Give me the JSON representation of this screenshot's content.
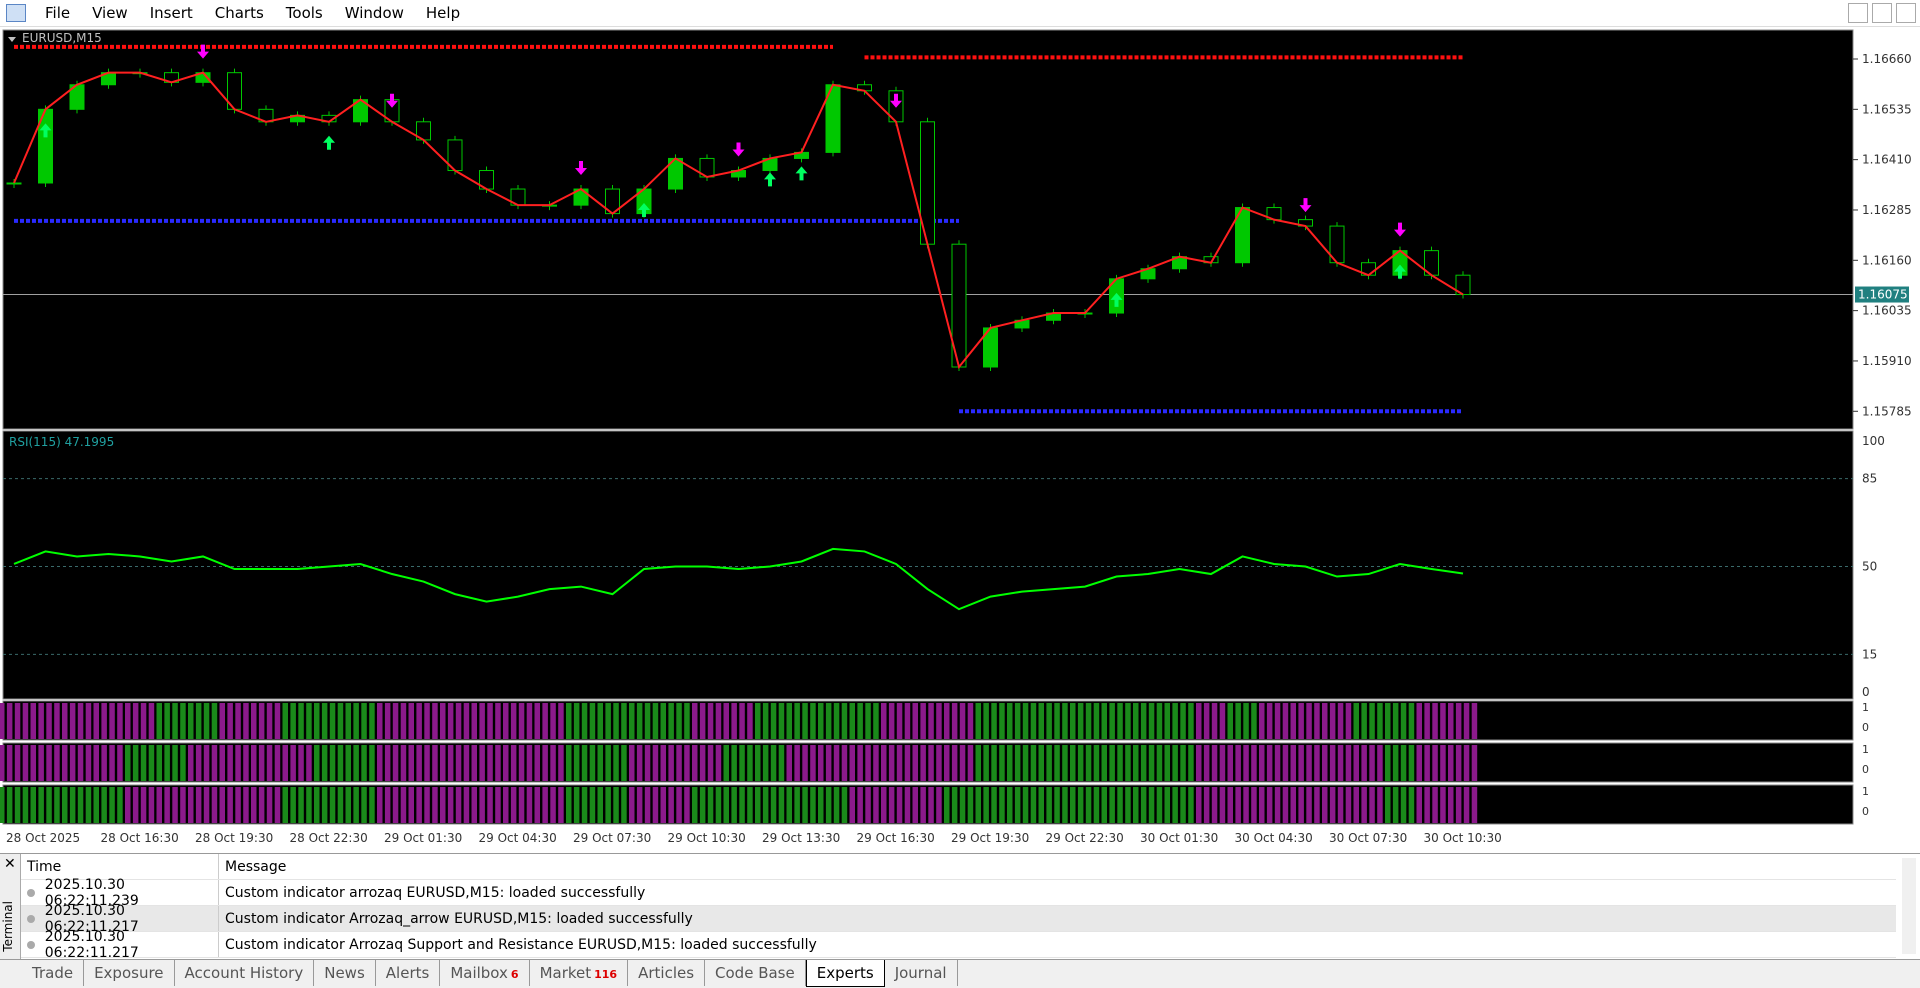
{
  "menu": [
    "File",
    "View",
    "Insert",
    "Charts",
    "Tools",
    "Window",
    "Help"
  ],
  "chart_data": {
    "type": "candlestick",
    "symbol": "EURUSD,M15",
    "price": {
      "values": [
        1.16352,
        1.16535,
        1.16596,
        1.16626,
        1.16626,
        1.16602,
        1.16626,
        1.16535,
        1.16504,
        1.1652,
        1.16504,
        1.16559,
        1.16504,
        1.16459,
        1.16383,
        1.16337,
        1.16297,
        1.16297,
        1.16337,
        1.16276,
        1.16337,
        1.16413,
        1.16367,
        1.16383,
        1.16413,
        1.16428,
        1.16596,
        1.16581,
        1.16504,
        1.162,
        1.15895,
        1.15992,
        1.16011,
        1.16029,
        1.16029,
        1.16114,
        1.16139,
        1.16169,
        1.16154,
        1.16291,
        1.16261,
        1.16245,
        1.16154,
        1.16123,
        1.16184,
        1.16123,
        1.16075
      ],
      "up_color": "#00c800",
      "line_color": "#ff2020",
      "ylim": [
        1.15741,
        1.16732
      ],
      "yticks": [
        {
          "value": 1.1666,
          "label": "1.16660"
        },
        1.16535,
        {
          "value": 1.1641,
          "label": "1.16410"
        },
        1.16285,
        {
          "value": 1.1616,
          "label": "1.16160"
        },
        1.16035,
        {
          "value": 1.1591,
          "label": "1.15910"
        },
        1.15785
      ],
      "current_price": 1.16075,
      "resistance": [
        {
          "price": 1.1669,
          "from": 0,
          "to": 26
        },
        {
          "price": 1.16664,
          "from": 27,
          "to": 46
        }
      ],
      "support": [
        {
          "price": 1.16258,
          "from": 0,
          "to": 30
        },
        {
          "price": 1.15785,
          "from": 30,
          "to": 46
        }
      ],
      "up_arrows": [
        1,
        10,
        20,
        24,
        25,
        35,
        44
      ],
      "down_arrows": [
        6,
        12,
        18,
        23,
        28,
        41,
        44
      ]
    },
    "rsi": {
      "title": "RSI(115) 47.1995",
      "color": "#00ff00",
      "values": [
        51,
        56,
        54,
        55,
        54,
        52,
        54,
        49,
        49,
        49,
        50,
        51,
        47,
        44,
        39,
        36,
        38,
        41,
        42,
        39,
        49,
        50,
        50,
        49,
        50,
        52,
        57,
        56,
        51,
        41,
        33,
        38,
        40,
        41,
        42,
        46,
        47,
        49,
        47,
        54,
        51,
        50,
        46,
        47,
        51,
        49,
        47.1995
      ],
      "ylim": [
        0,
        100
      ],
      "yticks": [
        100,
        85,
        50,
        15,
        0
      ]
    },
    "histograms": {
      "colors": [
        "#8b1a8b",
        "#1a8a1a"
      ],
      "yticks": [
        1,
        0
      ],
      "panes": [
        [
          0,
          0,
          0,
          0,
          0,
          1,
          1,
          0,
          0,
          1,
          1,
          1,
          0,
          0,
          0,
          0,
          0,
          0,
          1,
          1,
          1,
          1,
          0,
          0,
          1,
          1,
          1,
          1,
          0,
          0,
          0,
          1,
          1,
          1,
          1,
          1,
          1,
          1,
          0,
          1,
          0,
          0,
          0,
          1,
          1,
          0,
          0
        ],
        [
          0,
          0,
          0,
          0,
          1,
          1,
          0,
          0,
          0,
          0,
          1,
          1,
          0,
          0,
          0,
          0,
          0,
          0,
          1,
          1,
          0,
          0,
          0,
          1,
          1,
          0,
          0,
          0,
          0,
          0,
          0,
          1,
          1,
          1,
          1,
          1,
          1,
          1,
          0,
          0,
          0,
          0,
          0,
          0,
          1,
          0,
          0
        ],
        [
          1,
          1,
          1,
          1,
          0,
          0,
          0,
          0,
          0,
          1,
          1,
          1,
          0,
          0,
          0,
          0,
          0,
          0,
          1,
          1,
          0,
          0,
          1,
          1,
          1,
          1,
          1,
          0,
          0,
          0,
          1,
          1,
          1,
          1,
          1,
          1,
          1,
          1,
          0,
          0,
          0,
          0,
          0,
          0,
          1,
          0,
          0
        ]
      ]
    },
    "x_labels": [
      "28 Oct 2025",
      "28 Oct 16:30",
      "28 Oct 19:30",
      "28 Oct 22:30",
      "29 Oct 01:30",
      "29 Oct 04:30",
      "29 Oct 07:30",
      "29 Oct 10:30",
      "29 Oct 13:30",
      "29 Oct 16:30",
      "29 Oct 19:30",
      "29 Oct 22:30",
      "30 Oct 01:30",
      "30 Oct 04:30",
      "30 Oct 07:30",
      "30 Oct 10:30"
    ]
  },
  "terminal": {
    "label": "Terminal",
    "columns": [
      "Time",
      "Message"
    ],
    "rows": [
      [
        "2025.10.30 06:22:11.239",
        "Custom indicator arrozaq EURUSD,M15: loaded successfully"
      ],
      [
        "2025.10.30 06:22:11.217",
        "Custom indicator Arrozaq_arrow EURUSD,M15: loaded successfully"
      ],
      [
        "2025.10.30 06:22:11.217",
        "Custom indicator Arrozaq Support and Resistance EURUSD,M15: loaded successfully"
      ]
    ],
    "tabs": [
      {
        "label": "Trade"
      },
      {
        "label": "Exposure"
      },
      {
        "label": "Account History"
      },
      {
        "label": "News"
      },
      {
        "label": "Alerts"
      },
      {
        "label": "Mailbox",
        "badge": 6
      },
      {
        "label": "Market",
        "badge": 116
      },
      {
        "label": "Articles"
      },
      {
        "label": "Code Base"
      },
      {
        "label": "Experts",
        "active": true
      },
      {
        "label": "Journal"
      }
    ]
  }
}
